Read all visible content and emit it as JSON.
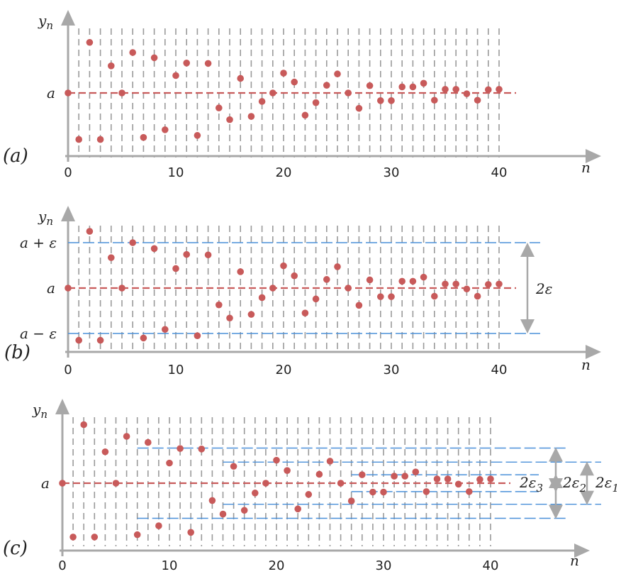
{
  "colors": {
    "axis": "#a8a8a8",
    "grid": "#9a9a9a",
    "limit_line": "#c85a5a",
    "band_line": "#4a90d9",
    "point": "#c85a5a",
    "arrow": "#a8a8a8"
  },
  "panels": [
    {
      "label": "(a)",
      "ylabel": "y",
      "ylabel_sub": "n",
      "xlabel": "n",
      "xticks": [
        "0",
        "10",
        "20",
        "30",
        "40"
      ],
      "limit_label": "a",
      "bands": []
    },
    {
      "label": "(b)",
      "ylabel": "y",
      "ylabel_sub": "n",
      "xlabel": "n",
      "xticks": [
        "0",
        "10",
        "20",
        "30",
        "40"
      ],
      "limit_label": "a",
      "upper_label": "a + ε",
      "lower_label": "a − ε",
      "bands": [
        {
          "eps": 1.0,
          "from_n": 0,
          "label": "2ε",
          "label_sub": ""
        }
      ]
    },
    {
      "label": "(c)",
      "ylabel": "y",
      "ylabel_sub": "n",
      "xlabel": "n",
      "xticks": [
        "0",
        "10",
        "20",
        "30",
        "40"
      ],
      "limit_label": "a",
      "bands": [
        {
          "eps": 0.18,
          "from_n": 27,
          "label": "2ε",
          "label_sub": "3"
        },
        {
          "eps": 0.45,
          "from_n": 15,
          "label": "2ε",
          "label_sub": "2"
        },
        {
          "eps": 0.75,
          "from_n": 7,
          "label": "2ε",
          "label_sub": "1"
        }
      ]
    }
  ],
  "chart_data": {
    "type": "scatter",
    "x": [
      1,
      2,
      3,
      4,
      5,
      6,
      7,
      8,
      9,
      10,
      11,
      12,
      13,
      14,
      15,
      16,
      17,
      18,
      19,
      20,
      21,
      22,
      23,
      24,
      25,
      26,
      27,
      28,
      29,
      30,
      31,
      32,
      33,
      34,
      35,
      36,
      37,
      38,
      39,
      40
    ],
    "y": [
      -1.15,
      1.25,
      -1.15,
      0.67,
      0.0,
      1.0,
      -1.1,
      0.87,
      -0.91,
      0.43,
      0.74,
      -1.05,
      0.73,
      -0.37,
      -0.66,
      0.36,
      -0.58,
      -0.21,
      0.0,
      0.49,
      0.27,
      -0.55,
      -0.24,
      0.19,
      0.47,
      0.0,
      -0.38,
      0.18,
      -0.19,
      -0.19,
      0.15,
      0.15,
      0.24,
      -0.18,
      0.09,
      0.09,
      -0.02,
      -0.18,
      0.08,
      0.09
    ],
    "limit": 0,
    "xlim": [
      0,
      42
    ],
    "ylim": [
      -1.3,
      1.4
    ]
  }
}
